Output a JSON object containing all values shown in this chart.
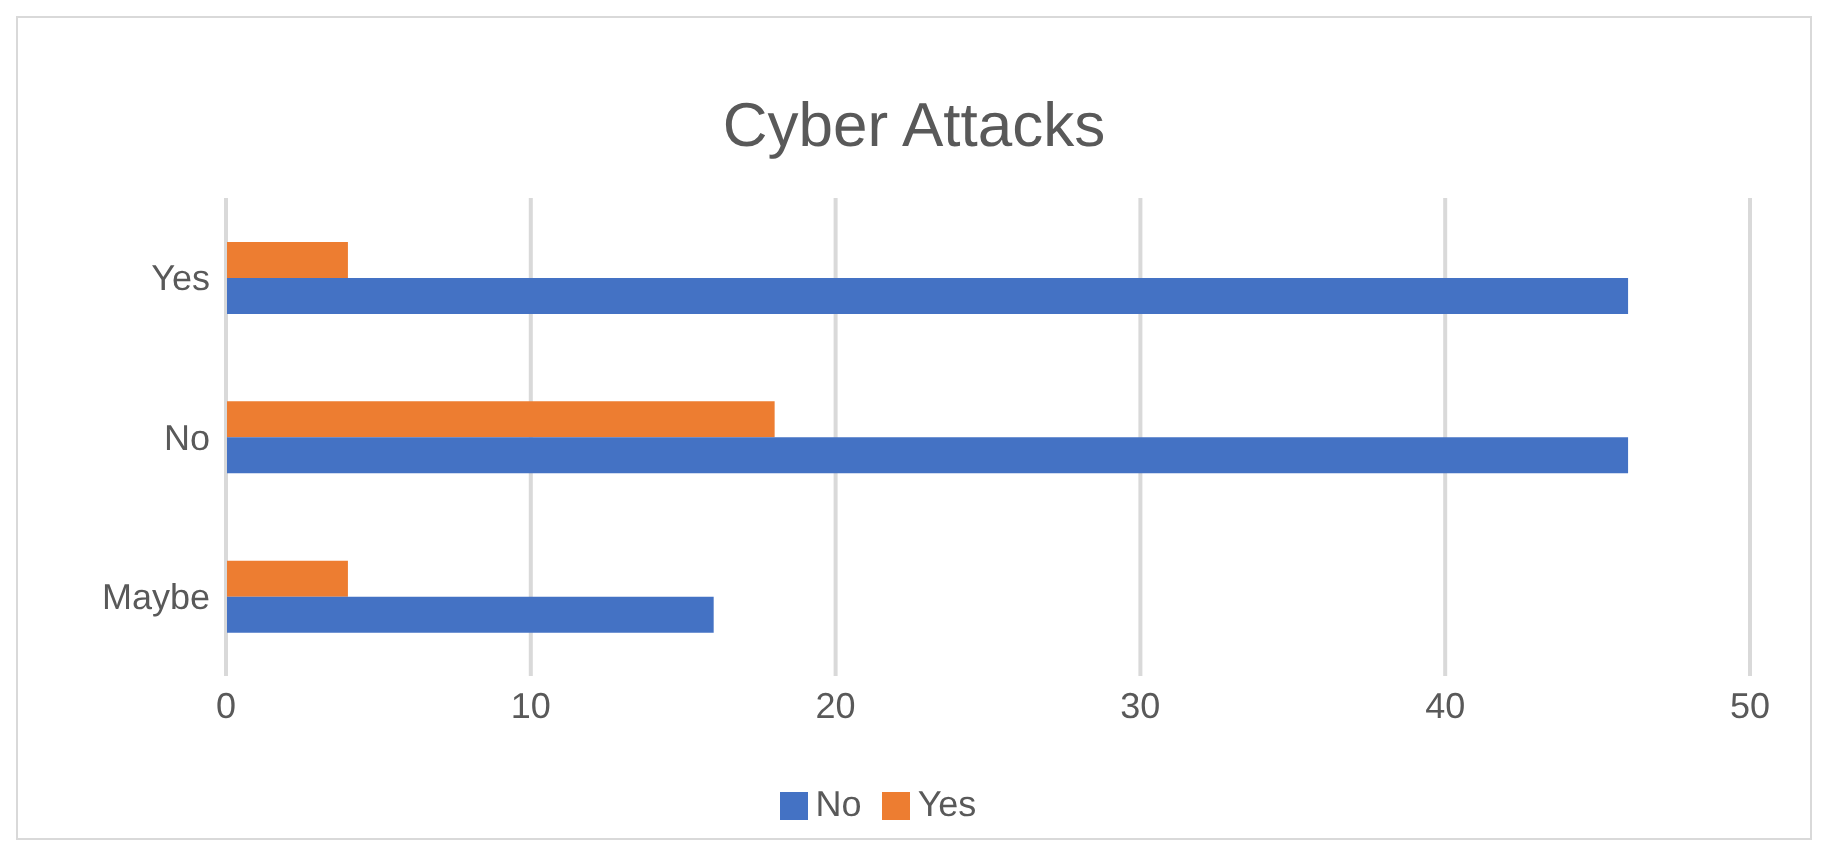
{
  "chart_data": {
    "type": "bar",
    "orientation": "horizontal",
    "title": "Cyber Attacks",
    "categories": [
      "Yes",
      "No",
      "Maybe"
    ],
    "series": [
      {
        "name": "Yes",
        "color": "#ed7d31",
        "values": [
          4,
          18,
          4
        ]
      },
      {
        "name": "No",
        "color": "#4472c4",
        "values": [
          46,
          46,
          16
        ]
      }
    ],
    "xlim": [
      0,
      50
    ],
    "xticks": [
      0,
      10,
      20,
      30,
      40,
      50
    ],
    "grid": "x",
    "legend": "bottom"
  }
}
